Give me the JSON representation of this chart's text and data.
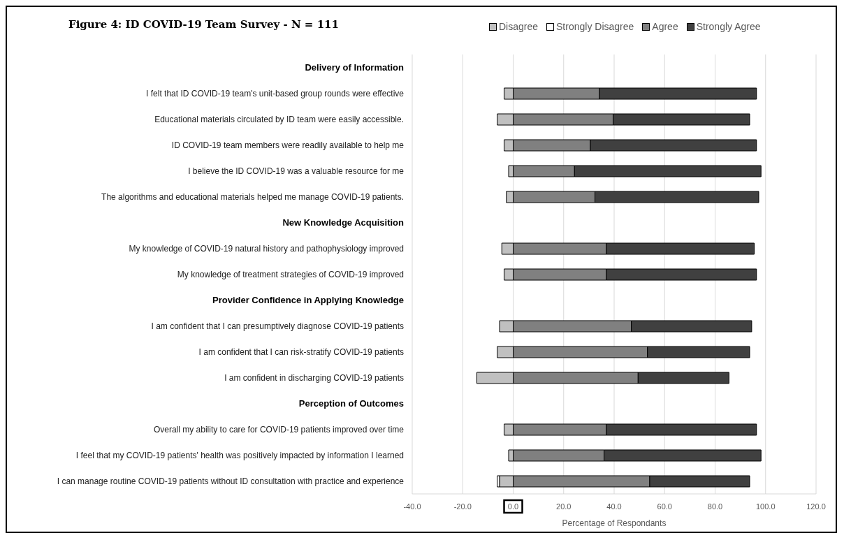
{
  "chart_data": {
    "type": "bar",
    "orientation": "horizontal",
    "stacked": true,
    "title": "Figure 4: ID COVID-19 Team Survey - N = 111",
    "xlabel": "Percentage of Respondants",
    "categories": [
      "Delivery of Information",
      "I felt that ID COVID-19 team's unit-based group rounds were effective",
      "Educational materials circulated by ID team were easily accessible.",
      "ID COVID-19 team members were readily available to help me",
      "I believe the ID COVID-19 was a valuable resource for me",
      "The algorithms and educational materials helped me manage COVID-19 patients.",
      "New Knowledge Acquisition",
      "My knowledge of COVID-19 natural history and pathophysiology improved",
      "My knowledge of treatment strategies of COVID-19 improved",
      "Provider Confidence in Applying Knowledge",
      "I am confident that I can presumptively diagnose COVID-19 patients",
      "I am confident that I can risk-stratify COVID-19 patients",
      "I am confident in discharging COVID-19 patients",
      "Perception of Outcomes",
      "Overall my ability to care for COVID-19 patients improved over time",
      "I feel that my COVID-19 patients' health was positively impacted by information I learned",
      "I can manage routine COVID-19 patients without ID consultation with practice and experience"
    ],
    "series": [
      {
        "name": "Disagree",
        "color": "#c0c0c0",
        "values": [
          null,
          -3.6,
          -6.3,
          -3.6,
          -1.8,
          -2.7,
          null,
          -4.5,
          -3.6,
          null,
          -5.4,
          -6.3,
          -14.4,
          null,
          -3.6,
          -1.8,
          -5.4
        ]
      },
      {
        "name": "Strongly Disagree",
        "color": "#ffffff",
        "values": [
          null,
          0,
          0,
          0,
          0,
          0,
          null,
          0,
          0,
          null,
          0,
          0,
          0,
          null,
          0,
          0,
          -0.9
        ]
      },
      {
        "name": "Agree",
        "color": "#808080",
        "values": [
          null,
          34.2,
          39.6,
          30.6,
          24.3,
          32.4,
          null,
          36.9,
          36.9,
          null,
          46.8,
          53.2,
          49.5,
          null,
          36.9,
          36.0,
          54.1
        ]
      },
      {
        "name": "Strongly Agree",
        "color": "#404040",
        "values": [
          null,
          62.2,
          54.1,
          65.8,
          73.9,
          64.9,
          null,
          58.6,
          59.5,
          null,
          47.7,
          40.5,
          36.0,
          null,
          59.5,
          62.2,
          39.6
        ]
      }
    ],
    "xlim": [
      -40,
      120
    ],
    "xticks": [
      {
        "value": -40,
        "label": "-40.0"
      },
      {
        "value": -20,
        "label": "-20.0"
      },
      {
        "value": 0,
        "label": "0.0"
      },
      {
        "value": 20,
        "label": "20.0"
      },
      {
        "value": 40,
        "label": "40.0"
      },
      {
        "value": 60,
        "label": "60.0"
      },
      {
        "value": 80,
        "label": "80.0"
      },
      {
        "value": 100,
        "label": "100.0"
      },
      {
        "value": 120,
        "label": "120.0"
      }
    ],
    "grid": "x",
    "legend": "top"
  }
}
